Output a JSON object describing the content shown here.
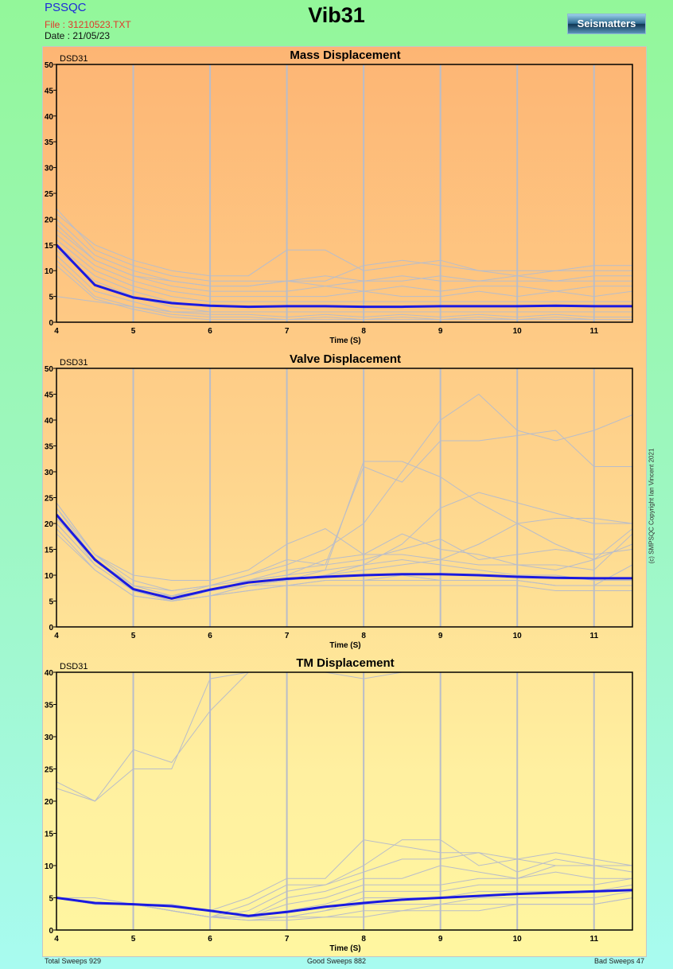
{
  "header": {
    "app": "PSSQC",
    "file": "File : 31210523.TXT",
    "date": "Date : 21/05/23",
    "title": "Vib31",
    "logo": "Seismatters"
  },
  "copyright": "(c) SMPSQC Copyright Ian Vincent 2021",
  "footer": {
    "total": "Total Sweeps 929",
    "good": "Good Sweeps 882",
    "bad": "Bad Sweeps 47"
  },
  "colors": {
    "mean": "#1a1adf",
    "sweep": "#b9bdc9",
    "grid": "#b9bdc9"
  },
  "chart_data": [
    {
      "type": "line",
      "title": "Mass Displacement",
      "device": "DSD31",
      "xlabel": "Time (S)",
      "xlim": [
        4,
        11.5
      ],
      "ylim": [
        0,
        50
      ],
      "xticks": [
        4,
        5,
        6,
        7,
        8,
        9,
        10,
        11
      ],
      "yticks": [
        0,
        5,
        10,
        15,
        20,
        25,
        30,
        35,
        40,
        45,
        50
      ],
      "x": [
        4,
        4.5,
        5,
        5.5,
        6,
        6.5,
        7,
        7.5,
        8,
        8.5,
        9,
        9.5,
        10,
        10.5,
        11,
        11.5
      ],
      "mean": [
        15,
        7.2,
        4.8,
        3.7,
        3.2,
        3.0,
        3.1,
        3.1,
        3.0,
        3.0,
        3.1,
        3.1,
        3.1,
        3.2,
        3.1,
        3.1
      ],
      "sweeps": [
        [
          22,
          14,
          11,
          9,
          8,
          8,
          8,
          9,
          8,
          8,
          9,
          8,
          8,
          8,
          9,
          9
        ],
        [
          20,
          13,
          10,
          8,
          7,
          7,
          8,
          7,
          8,
          9,
          8,
          8,
          9,
          8,
          8,
          8
        ],
        [
          18,
          12,
          9,
          7,
          6,
          6,
          6,
          7,
          6,
          7,
          6,
          7,
          7,
          6,
          7,
          7
        ],
        [
          17,
          11,
          8,
          6,
          5,
          5,
          5,
          5,
          6,
          5,
          5,
          6,
          5,
          6,
          5,
          6
        ],
        [
          16,
          10,
          7,
          5,
          4,
          4,
          4,
          4,
          4,
          4,
          4,
          4,
          4,
          4,
          4,
          4
        ],
        [
          14,
          8,
          5,
          3,
          2,
          2,
          2,
          2,
          2,
          2,
          2,
          2,
          2,
          2,
          2,
          2
        ],
        [
          13,
          6,
          4,
          2,
          1.5,
          1.5,
          1,
          1.5,
          1,
          1.5,
          1,
          1.5,
          1,
          1.5,
          1,
          1
        ],
        [
          12,
          5,
          3,
          1.5,
          1,
          1,
          0.5,
          1,
          0.5,
          1,
          0.5,
          1,
          0.5,
          1,
          0.5,
          0.5
        ],
        [
          11,
          4.5,
          2.5,
          1,
          0.5,
          0.5,
          0.5,
          0.5,
          0.5,
          0.5,
          0.5,
          0.5,
          0.5,
          0.5,
          0.5,
          0.5
        ],
        [
          21,
          15,
          12,
          10,
          9,
          9,
          14,
          14,
          10,
          11,
          12,
          10,
          10,
          10,
          11,
          11
        ],
        [
          19,
          12,
          9,
          8,
          7,
          7,
          8,
          8,
          11,
          12,
          11,
          10,
          9,
          10,
          10,
          10
        ],
        [
          15,
          9,
          6,
          4,
          3,
          3,
          3,
          3,
          3,
          3,
          3,
          3,
          3,
          3,
          3,
          3
        ],
        [
          5,
          4,
          3,
          2,
          2,
          2,
          2,
          2,
          2,
          2,
          2,
          2,
          2,
          2,
          2,
          2
        ]
      ]
    },
    {
      "type": "line",
      "title": "Valve Displacement",
      "device": "DSD31",
      "xlabel": "Time (S)",
      "xlim": [
        4,
        11.5
      ],
      "ylim": [
        0,
        50
      ],
      "xticks": [
        4,
        5,
        6,
        7,
        8,
        9,
        10,
        11
      ],
      "yticks": [
        0,
        5,
        10,
        15,
        20,
        25,
        30,
        35,
        40,
        45,
        50
      ],
      "x": [
        4,
        4.5,
        5,
        5.5,
        6,
        6.5,
        7,
        7.5,
        8,
        8.5,
        9,
        9.5,
        10,
        10.5,
        11,
        11.5
      ],
      "mean": [
        21.7,
        13,
        7.3,
        5.5,
        7.2,
        8.6,
        9.3,
        9.7,
        10.0,
        10.2,
        10.2,
        10.0,
        9.7,
        9.5,
        9.4,
        9.4
      ],
      "sweeps": [
        [
          24,
          14,
          8,
          6,
          8,
          10,
          12,
          15,
          20,
          30,
          40,
          45,
          38,
          36,
          38,
          41
        ],
        [
          23,
          13,
          8,
          7,
          8,
          9,
          11,
          12,
          31,
          28,
          36,
          36,
          37,
          38,
          31,
          31
        ],
        [
          22,
          13,
          7,
          6,
          7,
          9,
          10,
          11,
          32,
          32,
          29,
          24,
          20,
          21,
          21,
          20
        ],
        [
          20,
          12,
          7,
          5,
          7,
          8,
          9,
          10,
          12,
          16,
          23,
          26,
          24,
          22,
          20,
          20
        ],
        [
          19,
          11,
          6,
          5,
          6,
          8,
          9,
          10,
          11,
          12,
          13,
          16,
          20,
          16,
          13,
          19
        ],
        [
          21,
          13,
          7,
          6,
          7,
          9,
          10,
          13,
          14,
          18,
          15,
          14,
          12,
          12,
          11,
          18
        ],
        [
          22,
          12,
          7,
          5,
          6,
          8,
          9,
          11,
          12,
          13,
          12,
          11,
          10,
          10,
          9,
          9
        ],
        [
          21,
          13,
          8,
          6,
          7,
          8,
          8,
          9,
          9,
          10,
          9,
          9,
          9,
          8,
          8,
          8
        ],
        [
          20,
          12,
          7,
          5,
          6,
          7,
          8,
          8,
          8,
          8,
          8,
          8,
          8,
          7,
          7,
          7
        ],
        [
          23,
          14,
          10,
          9,
          9,
          11,
          16,
          19,
          14,
          14,
          13,
          12,
          12,
          11,
          13,
          16
        ],
        [
          18,
          11,
          6,
          5,
          6,
          7,
          8,
          9,
          9,
          9,
          9,
          9,
          9,
          8,
          8,
          12
        ],
        [
          24,
          14,
          9,
          7,
          8,
          10,
          13,
          12,
          13,
          15,
          17,
          13,
          14,
          15,
          14,
          15
        ]
      ]
    },
    {
      "type": "line",
      "title": "TM Displacement",
      "device": "DSD31",
      "xlabel": "Time (S)",
      "xlim": [
        4,
        11.5
      ],
      "ylim": [
        0,
        40
      ],
      "xticks": [
        4,
        5,
        6,
        7,
        8,
        9,
        10,
        11
      ],
      "yticks": [
        0,
        5,
        10,
        15,
        20,
        25,
        30,
        35,
        40
      ],
      "x": [
        4,
        4.5,
        5,
        5.5,
        6,
        6.5,
        7,
        7.5,
        8,
        8.5,
        9,
        9.5,
        10,
        10.5,
        11,
        11.5
      ],
      "mean": [
        5,
        4.2,
        4.0,
        3.7,
        3.0,
        2.2,
        2.8,
        3.6,
        4.2,
        4.7,
        5.0,
        5.3,
        5.6,
        5.8,
        6.0,
        6.2
      ],
      "sweeps": [
        [
          22,
          20,
          25,
          25,
          39,
          41,
          41,
          41,
          39,
          40,
          40,
          40,
          40,
          40,
          40,
          40
        ],
        [
          23,
          20,
          28,
          26,
          34,
          40,
          41,
          41,
          41,
          41,
          41,
          41,
          41,
          41,
          41,
          41
        ],
        [
          5,
          5,
          4,
          4,
          3,
          5,
          8,
          8,
          14,
          13,
          12,
          12,
          9,
          11,
          10,
          10
        ],
        [
          5,
          4,
          4,
          3,
          2,
          3,
          6,
          7,
          10,
          14,
          14,
          10,
          11,
          10,
          10,
          9
        ],
        [
          5,
          4,
          4,
          3,
          2,
          4,
          7,
          7,
          9,
          11,
          11,
          12,
          11,
          12,
          11,
          10
        ],
        [
          5,
          4,
          4,
          3,
          2,
          2,
          5,
          6,
          8,
          8,
          10,
          9,
          8,
          10,
          10,
          10
        ],
        [
          5,
          4,
          4,
          3,
          2,
          2,
          4,
          5,
          7,
          7,
          7,
          8,
          8,
          9,
          8,
          8
        ],
        [
          5,
          4,
          4,
          3,
          2,
          2,
          3,
          4,
          6,
          6,
          6,
          7,
          7,
          7,
          7,
          8
        ],
        [
          5,
          4,
          4,
          3,
          2,
          2,
          2,
          3,
          5,
          5,
          5,
          6,
          6,
          6,
          6,
          7
        ],
        [
          5,
          4,
          4,
          3,
          2,
          2,
          2,
          3,
          4,
          4,
          4,
          5,
          5,
          5,
          5,
          6
        ],
        [
          5,
          4,
          4,
          3,
          2,
          1.5,
          2,
          2,
          3,
          3,
          4,
          4,
          4,
          4,
          4,
          5
        ],
        [
          5,
          4,
          4,
          3,
          2,
          1.5,
          1.5,
          2,
          2,
          3,
          3,
          3,
          4,
          4,
          4,
          5
        ]
      ]
    }
  ]
}
